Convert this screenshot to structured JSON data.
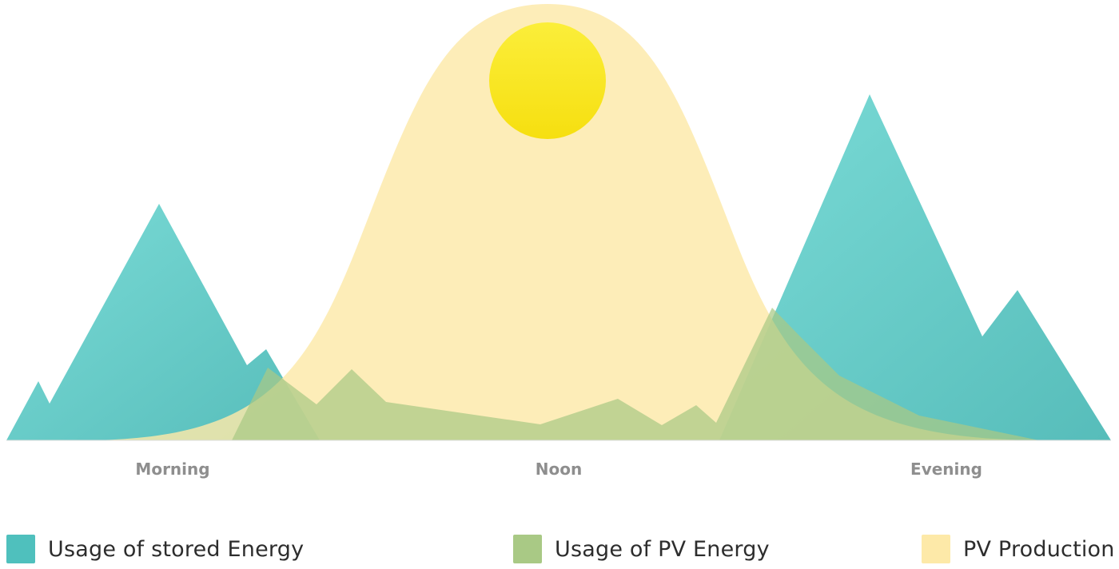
{
  "colors": {
    "stored": "#4fc0bd",
    "pv_usage": "#a9c985",
    "pv_production": "#fde9a8",
    "sun": "#f7e51c"
  },
  "time_labels": {
    "morning": "Morning",
    "noon": "Noon",
    "evening": "Evening"
  },
  "legend": {
    "stored": "Usage of stored Energy",
    "pv_usage": "Usage of PV Energy",
    "pv_production": "PV Production"
  }
}
